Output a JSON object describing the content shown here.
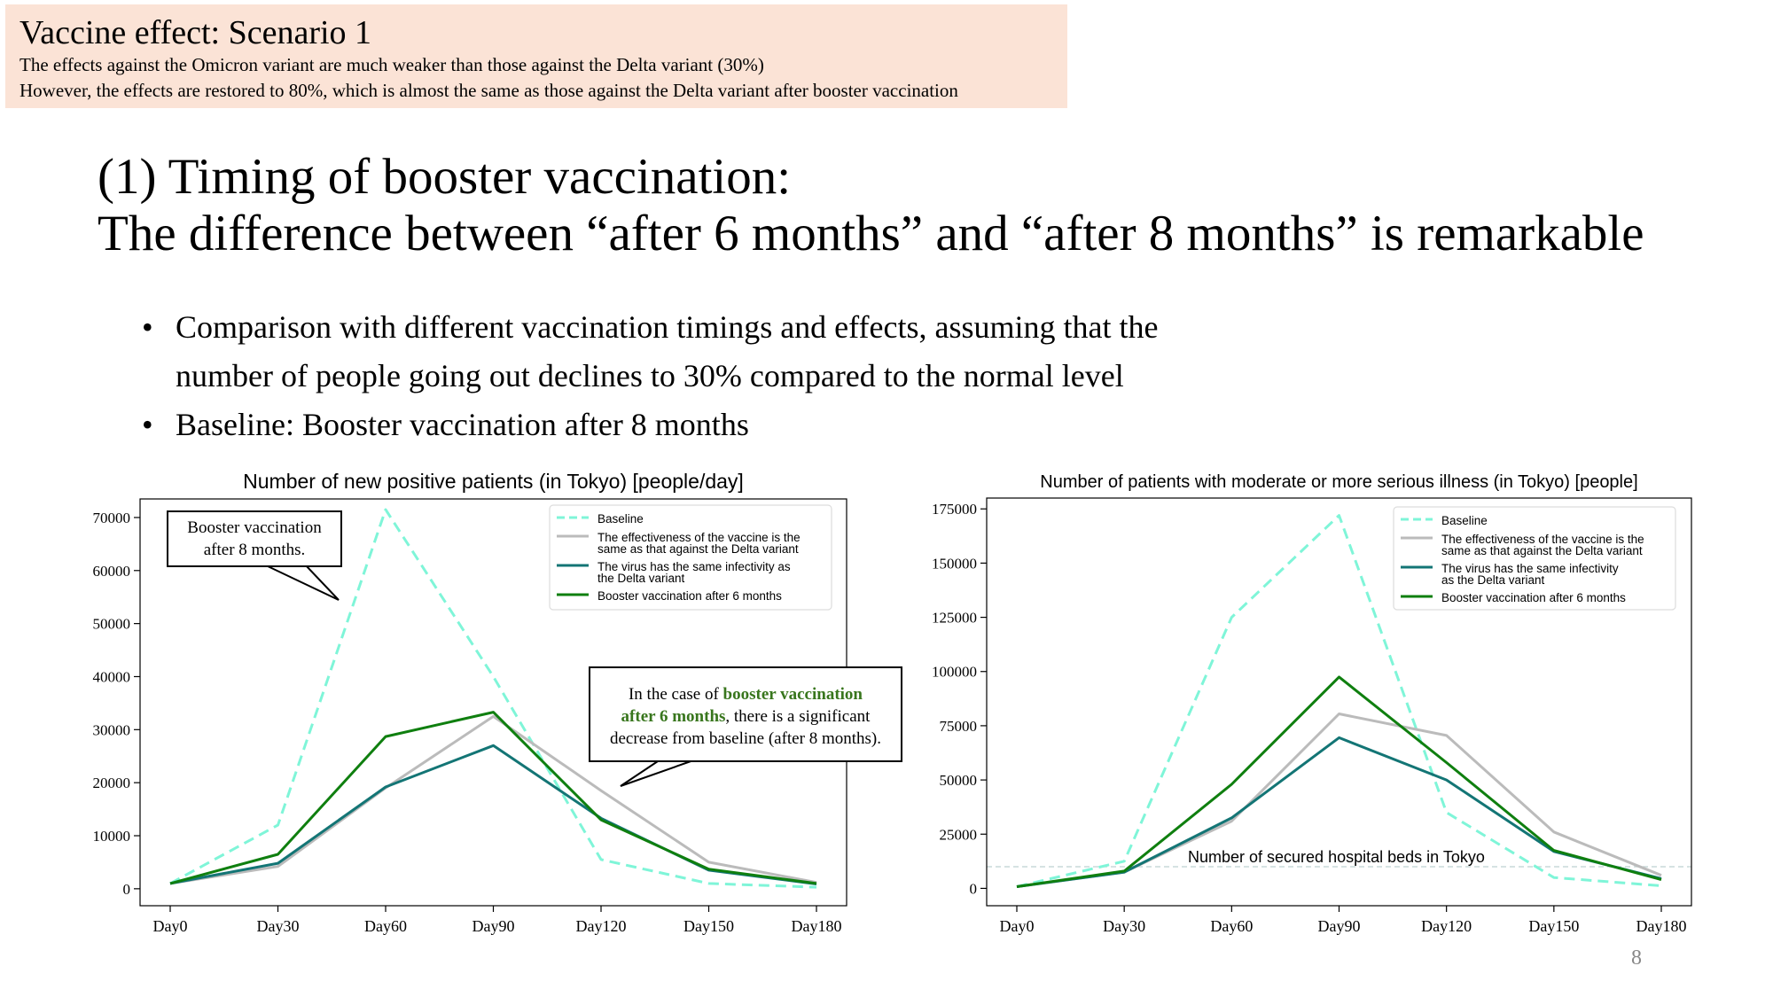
{
  "banner": {
    "title": "Vaccine effect: Scenario 1",
    "line1": "The effects against the Omicron variant are much weaker than those against the Delta variant (30%)",
    "line2": "However, the effects are restored to 80%, which is almost the same as those against the Delta variant after booster vaccination"
  },
  "heading": {
    "line1": "(1) Timing of booster vaccination:",
    "line2": "The difference between “after 6 months” and “after 8 months” is remarkable"
  },
  "bullets": [
    {
      "dot": "•",
      "line1": "Comparison with different vaccination timings and effects, assuming that the",
      "line2": "number of people going out declines to 30% compared to the normal level"
    },
    {
      "dot": "•",
      "line1": "Baseline: Booster vaccination after 8 months",
      "line2": ""
    }
  ],
  "callouts": {
    "booster8": {
      "line1": "Booster vaccination",
      "line2": "after 8 months."
    },
    "booster6": {
      "pre": "In the case of ",
      "hl1": "booster vaccination",
      "hl2": "after 6 months",
      "post": ", there is a significant",
      "line3": "decrease from baseline (after 8 months)."
    }
  },
  "page_number": "8",
  "colors": {
    "baseline": "#7ff5d8",
    "delta_effect": "#bbbbbb",
    "delta_infect": "#137575",
    "booster6": "#0f7f0f",
    "hl": "#38761d"
  },
  "chart_data": [
    {
      "type": "line",
      "title": "Number of new positive patients (in Tokyo) [people/day]",
      "categories": [
        "Day0",
        "Day30",
        "Day60",
        "Day90",
        "Day120",
        "Day150",
        "Day180"
      ],
      "ylim": [
        -3200,
        73500
      ],
      "yticks": [
        0,
        10000,
        20000,
        30000,
        40000,
        50000,
        60000,
        70000
      ],
      "legend": "top-right",
      "series": [
        {
          "name": "Baseline",
          "style": "dashed",
          "color": "#7ff5d8",
          "values": [
            1000,
            12000,
            71500,
            40000,
            5500,
            1000,
            300
          ]
        },
        {
          "name": "The effectiveness of the vaccine is the same as that against the Delta variant",
          "legend_lines": [
            "The effectiveness of the vaccine is the",
            "same as that against the Delta variant"
          ],
          "style": "solid",
          "color": "#bbbbbb",
          "values": [
            1000,
            4200,
            19000,
            32500,
            18500,
            5000,
            1200
          ]
        },
        {
          "name": "The virus has the same infectivity as the Delta variant",
          "legend_lines": [
            "The virus has the same infectivity as",
            "the Delta variant"
          ],
          "style": "solid",
          "color": "#137575",
          "values": [
            1000,
            4800,
            19200,
            27000,
            13300,
            3500,
            900
          ]
        },
        {
          "name": "Booster vaccination after 6 months",
          "style": "solid",
          "color": "#0f7f0f",
          "values": [
            1000,
            6500,
            28700,
            33300,
            13000,
            3700,
            1000
          ]
        }
      ]
    },
    {
      "type": "line",
      "title": "Number of patients with moderate or more serious illness (in Tokyo) [people]",
      "categories": [
        "Day0",
        "Day30",
        "Day60",
        "Day90",
        "Day120",
        "Day150",
        "Day180"
      ],
      "ylim": [
        -8000,
        180000
      ],
      "yticks": [
        0,
        25000,
        50000,
        75000,
        100000,
        125000,
        150000,
        175000
      ],
      "legend": "top-right",
      "reference_line": {
        "value": 10000,
        "label": "Number of secured hospital beds in Tokyo"
      },
      "series": [
        {
          "name": "Baseline",
          "style": "dashed",
          "color": "#7ff5d8",
          "values": [
            800,
            12500,
            125000,
            172000,
            35000,
            5000,
            1200
          ]
        },
        {
          "name": "The effectiveness of the vaccine is the same as that against the Delta variant",
          "legend_lines": [
            "The effectiveness of the vaccine is the",
            "same as that against the Delta variant"
          ],
          "style": "solid",
          "color": "#bbbbbb",
          "values": [
            800,
            7500,
            31000,
            80500,
            70500,
            26000,
            6000
          ]
        },
        {
          "name": "The virus has the same infectivity as the Delta variant",
          "legend_lines": [
            "The virus has the same infectivity",
            "as the Delta variant"
          ],
          "style": "solid",
          "color": "#137575",
          "values": [
            800,
            7500,
            32500,
            69500,
            50000,
            17000,
            4500
          ]
        },
        {
          "name": "Booster vaccination after 6 months",
          "style": "solid",
          "color": "#0f7f0f",
          "values": [
            800,
            8000,
            48000,
            97500,
            58000,
            17500,
            4000
          ]
        }
      ]
    }
  ]
}
